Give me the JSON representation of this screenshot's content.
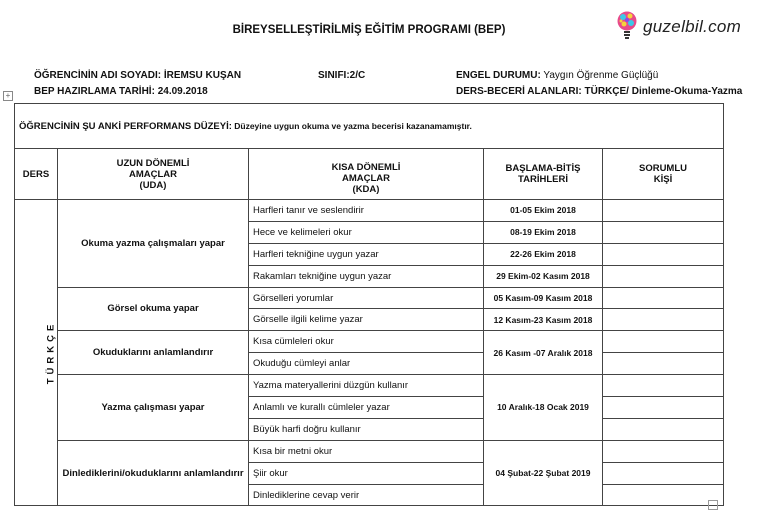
{
  "title": "BİREYSELLEŞTİRİLMİŞ EĞİTİM PROGRAMI (BEP)",
  "logo": {
    "text": "guzelbil.com",
    "icon": "lightbulb-icon"
  },
  "meta": {
    "student_name": "ÖĞRENCİNİN ADI SOYADI: İREMSU KUŞAN",
    "class": "SINIFI:2/C",
    "disability_label": "ENGEL DURUMU:",
    "disability_value": " Yaygın Öğrenme Güçlüğü",
    "prep_date": "BEP HAZIRLAMA TARİHİ: 24.09.2018",
    "skill_areas": "DERS-BECERİ ALANLARI: TÜRKÇE/ Dinleme-Okuma-Yazma"
  },
  "performance": {
    "label": "ÖĞRENCİNİN ŞU ANKİ PERFORMANS DÜZEYİ:",
    "value": " Düzeyine uygun okuma ve yazma becerisi kazanamamıştır."
  },
  "headers": {
    "ders": "DERS",
    "uda": [
      "UZUN DÖNEMLİ",
      "AMAÇLAR",
      "(UDA)"
    ],
    "kda": [
      "KISA DÖNEMLİ",
      "AMAÇLAR",
      "(KDA)"
    ],
    "dates": [
      "BAŞLAMA-BİTİŞ",
      "TARİHLERİ"
    ],
    "responsible": [
      "SORUMLU",
      "KİŞİ"
    ]
  },
  "subject": "TÜRKÇE",
  "groups": [
    {
      "uda": "Okuma yazma çalışmaları yapar",
      "rows": [
        {
          "kda": "Harfleri tanır ve seslendirir",
          "date": "01-05 Ekim 2018"
        },
        {
          "kda": "Hece ve kelimeleri okur",
          "date": "08-19 Ekim 2018"
        },
        {
          "kda": "Harfleri tekniğine uygun yazar",
          "date": "22-26 Ekim 2018"
        },
        {
          "kda": "Rakamları tekniğine uygun yazar",
          "date": "29 Ekim-02 Kasım 2018"
        }
      ]
    },
    {
      "uda": "Görsel okuma yapar",
      "rows": [
        {
          "kda": "Görselleri yorumlar",
          "date": "05 Kasım-09 Kasım 2018"
        },
        {
          "kda": "Görselle ilgili kelime yazar",
          "date": "12 Kasım-23 Kasım 2018"
        }
      ]
    },
    {
      "uda": "Okuduklarını anlamlandırır",
      "shared_date": "26 Kasım -07 Aralık 2018",
      "rows": [
        {
          "kda": "Kısa cümleleri okur"
        },
        {
          "kda": "Okuduğu cümleyi anlar"
        }
      ]
    },
    {
      "uda": "Yazma çalışması yapar",
      "shared_date": "10 Aralık-18 Ocak 2019",
      "rows": [
        {
          "kda": "Yazma materyallerini düzgün kullanır"
        },
        {
          "kda": "Anlamlı ve kurallı cümleler yazar"
        },
        {
          "kda": "Büyük harfi doğru kullanır"
        }
      ]
    },
    {
      "uda": "Dinlediklerini/okuduklarını anlamlandırır",
      "shared_date": "04 Şubat-22 Şubat 2019",
      "rows": [
        {
          "kda": "Kısa bir metni okur"
        },
        {
          "kda": "Şiir okur"
        },
        {
          "kda": "Dinlediklerine cevap verir"
        }
      ]
    }
  ]
}
